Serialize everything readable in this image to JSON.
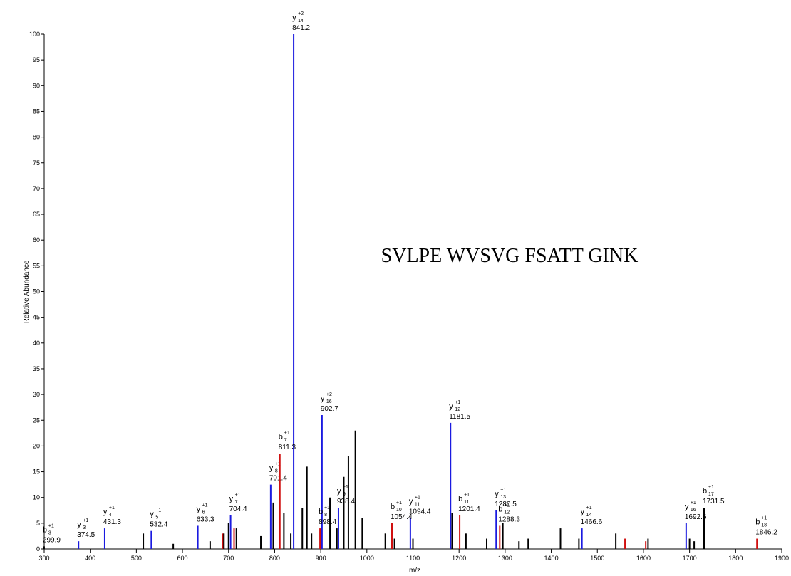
{
  "chart_data": {
    "type": "spectrum",
    "title": "SVLPE WVSVG FSATT GINK",
    "xlabel": "m/z",
    "ylabel": "Relative Abundance",
    "xlim": [
      300,
      1900
    ],
    "ylim": [
      0,
      100
    ],
    "xticks": [
      300,
      400,
      500,
      600,
      700,
      800,
      900,
      1000,
      1100,
      1200,
      1300,
      1400,
      1500,
      1600,
      1700,
      1800,
      1900
    ],
    "yticks": [
      0,
      5,
      10,
      15,
      20,
      25,
      30,
      35,
      40,
      45,
      50,
      55,
      60,
      65,
      70,
      75,
      80,
      85,
      90,
      95,
      100
    ],
    "series": [
      {
        "color": "#1a1ae0",
        "x": [
          374.5,
          431.3,
          532.4,
          633.3,
          704.4,
          791.4,
          841.2,
          902.7,
          938.4,
          1094.4,
          1181.5,
          1280.5,
          1466.6,
          1692.6
        ],
        "values": [
          1.5,
          4,
          3.5,
          4.5,
          6.5,
          12.5,
          100,
          26,
          8,
          6,
          24.5,
          7.5,
          4,
          5
        ],
        "ions": [
          {
            "ion": "y",
            "sub": "3",
            "sup": "+1"
          },
          {
            "ion": "y",
            "sub": "4",
            "sup": "+1"
          },
          {
            "ion": "y",
            "sub": "5",
            "sup": "+1"
          },
          {
            "ion": "y",
            "sub": "6",
            "sup": "+1"
          },
          {
            "ion": "y",
            "sub": "7",
            "sup": "+1"
          },
          {
            "ion": "y",
            "sub": "8",
            "sup": "+1"
          },
          {
            "ion": "y",
            "sub": "14",
            "sup": "+2"
          },
          {
            "ion": "y",
            "sub": "16",
            "sup": "+2"
          },
          {
            "ion": "y",
            "sub": "9",
            "sup": "+1"
          },
          {
            "ion": "y",
            "sub": "11",
            "sup": "+1"
          },
          {
            "ion": "y",
            "sub": "12",
            "sup": "+1"
          },
          {
            "ion": "y",
            "sub": "13",
            "sup": "+1"
          },
          {
            "ion": "y",
            "sub": "14",
            "sup": "+1"
          },
          {
            "ion": "y",
            "sub": "16",
            "sup": "+1"
          }
        ]
      },
      {
        "color": "#d01010",
        "x": [
          688,
          712,
          811.3,
          898.4,
          1054.4,
          1201.4,
          1288.3,
          1560,
          1605,
          1846.2
        ],
        "values": [
          3,
          4,
          18.5,
          4,
          5,
          6.5,
          4.5,
          2,
          1.5,
          2
        ],
        "ions": [
          null,
          null,
          {
            "ion": "b",
            "sub": "7",
            "sup": "+1"
          },
          {
            "ion": "b",
            "sub": "8",
            "sup": "+1"
          },
          {
            "ion": "b",
            "sub": "10",
            "sup": "+1"
          },
          {
            "ion": "b",
            "sub": "11",
            "sup": "+1"
          },
          {
            "ion": "b",
            "sub": "12",
            "sup": "+1"
          },
          null,
          null,
          {
            "ion": "b",
            "sub": "18",
            "sup": "+1"
          }
        ]
      },
      {
        "color": "#000000",
        "x": [
          299.9,
          515,
          580,
          660,
          690,
          700,
          717,
          770,
          797,
          820,
          835,
          860,
          870,
          880,
          920,
          935,
          950,
          960,
          975,
          990,
          1040,
          1060,
          1100,
          1185,
          1215,
          1260,
          1295,
          1330,
          1350,
          1420,
          1460,
          1540,
          1610,
          1700,
          1710,
          1731.5
        ],
        "values": [
          0.5,
          3,
          1,
          1.5,
          3,
          5,
          4,
          2.5,
          9,
          7,
          3,
          8,
          16,
          3,
          10,
          4,
          14,
          18,
          23,
          6,
          3,
          2,
          2,
          7,
          3,
          2,
          5,
          1.5,
          2,
          4,
          2,
          3,
          2,
          2,
          1.5,
          8
        ],
        "ions": [
          {
            "ion": "b",
            "sub": "3",
            "sup": "+1"
          },
          null,
          null,
          null,
          null,
          null,
          null,
          null,
          null,
          null,
          null,
          null,
          null,
          null,
          null,
          null,
          null,
          null,
          null,
          null,
          null,
          null,
          null,
          null,
          null,
          null,
          null,
          null,
          null,
          null,
          null,
          null,
          null,
          null,
          null,
          {
            "ion": "b",
            "sub": "17",
            "sup": "+1"
          }
        ]
      }
    ]
  }
}
